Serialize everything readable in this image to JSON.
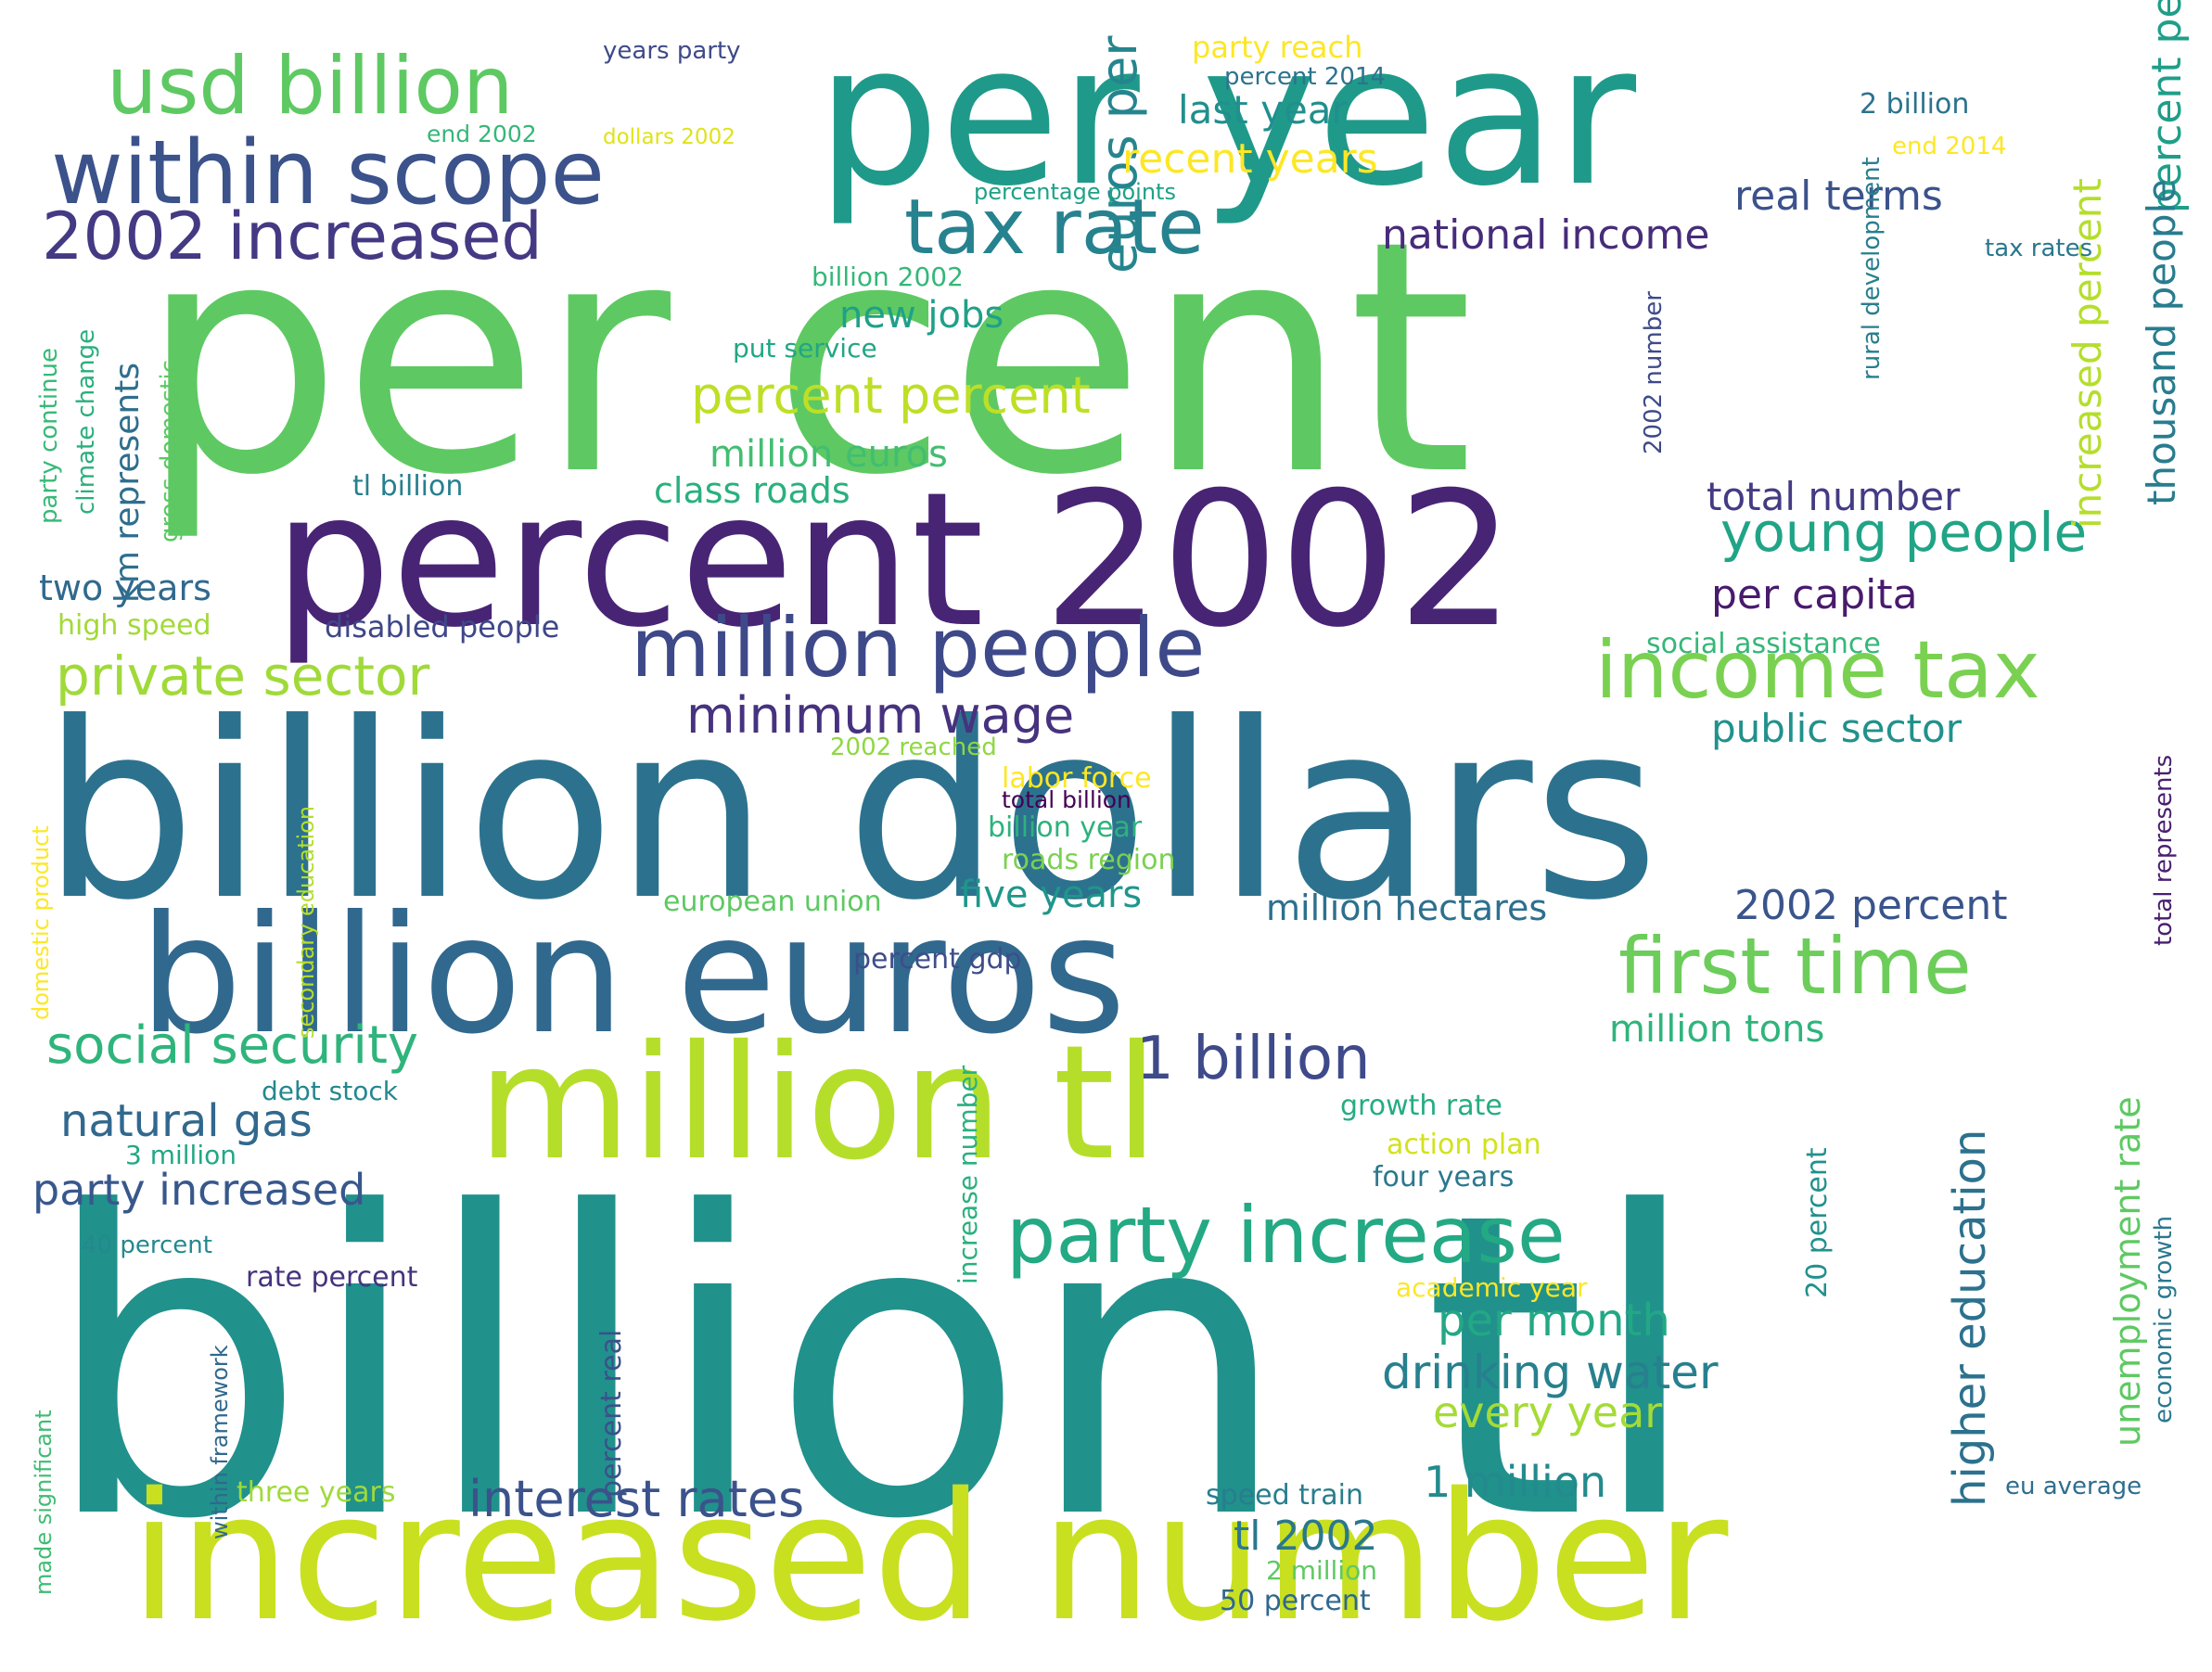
{
  "words": [
    {
      "text": "billion tl",
      "color": "#21918c"
    },
    {
      "text": "per cent",
      "color": "#5ec962"
    },
    {
      "text": "billion dollars",
      "color": "#2c728e"
    },
    {
      "text": "per year",
      "color": "#1f9a8a"
    },
    {
      "text": "percent 2002",
      "color": "#482475"
    },
    {
      "text": "increased number",
      "color": "#c8e020"
    },
    {
      "text": "billion euros",
      "color": "#31688e"
    },
    {
      "text": "million tl",
      "color": "#b5de2b"
    },
    {
      "text": "within scope",
      "color": "#3b528b"
    },
    {
      "text": "usd billion",
      "color": "#5ec962"
    },
    {
      "text": "2002 increased",
      "color": "#443983"
    },
    {
      "text": "tax rate",
      "color": "#26828e"
    },
    {
      "text": "million people",
      "color": "#3e4989"
    },
    {
      "text": "income tax",
      "color": "#7ad151"
    },
    {
      "text": "first time",
      "color": "#6ccd5a"
    },
    {
      "text": "party increase",
      "color": "#23a983"
    },
    {
      "text": "private sector",
      "color": "#a0da39"
    },
    {
      "text": "young people",
      "color": "#20a486"
    },
    {
      "text": "social security",
      "color": "#2fb47c"
    },
    {
      "text": "1 billion",
      "color": "#3e4a89"
    },
    {
      "text": "minimum wage",
      "color": "#46327e"
    },
    {
      "text": "percent percent",
      "color": "#bddf26"
    },
    {
      "text": "interest rates",
      "color": "#3b528b"
    },
    {
      "text": "drinking water",
      "color": "#27808e"
    },
    {
      "text": "euros per",
      "color": "#25858e"
    },
    {
      "text": "natural gas",
      "color": "#31688e"
    },
    {
      "text": "party increased",
      "color": "#38588c"
    },
    {
      "text": "per month",
      "color": "#22a884"
    },
    {
      "text": "every year",
      "color": "#a5db36"
    },
    {
      "text": "1 million",
      "color": "#238a8d"
    },
    {
      "text": "tl 2002",
      "color": "#2a788e"
    },
    {
      "text": "higher education",
      "color": "#2c718e"
    },
    {
      "text": "unemployment rate",
      "color": "#5ec962"
    },
    {
      "text": "recent years",
      "color": "#fde725"
    },
    {
      "text": "last year",
      "color": "#218f8d"
    },
    {
      "text": "national income",
      "color": "#472c7a"
    },
    {
      "text": "real terms",
      "color": "#3b528b"
    },
    {
      "text": "total number",
      "color": "#443b84"
    },
    {
      "text": "per capita",
      "color": "#481b6d"
    },
    {
      "text": "public sector",
      "color": "#21918c"
    },
    {
      "text": "million euros",
      "color": "#42be71"
    },
    {
      "text": "new jobs",
      "color": "#1fa088"
    },
    {
      "text": "class roads",
      "color": "#2ab07f"
    },
    {
      "text": "five years",
      "color": "#1f968b"
    },
    {
      "text": "million hectares",
      "color": "#2d708e"
    },
    {
      "text": "2002 percent",
      "color": "#3a548c"
    },
    {
      "text": "million tons",
      "color": "#2fb47c"
    },
    {
      "text": "two years",
      "color": "#30698e"
    },
    {
      "text": "km represents",
      "color": "#2e6e8e"
    },
    {
      "text": "percent people",
      "color": "#1f9e89"
    },
    {
      "text": "increased percent",
      "color": "#b5de2b"
    },
    {
      "text": "thousand people",
      "color": "#287c8e"
    },
    {
      "text": "percent gdp",
      "color": "#3d4e8a"
    },
    {
      "text": "european union",
      "color": "#5ec962"
    },
    {
      "text": "roads region",
      "color": "#7ad151"
    },
    {
      "text": "billion year",
      "color": "#2db27d"
    },
    {
      "text": "labor force",
      "color": "#fde725"
    },
    {
      "text": "total billion",
      "color": "#440154"
    },
    {
      "text": "2002 reached",
      "color": "#90d743"
    },
    {
      "text": "social assistance",
      "color": "#35b779"
    },
    {
      "text": "disabled people",
      "color": "#3f4788"
    },
    {
      "text": "high speed",
      "color": "#a2da37"
    },
    {
      "text": "tl billion",
      "color": "#277f8e"
    },
    {
      "text": "debt stock",
      "color": "#24878e"
    },
    {
      "text": "3 million",
      "color": "#22a785"
    },
    {
      "text": "40 percent",
      "color": "#23898e"
    },
    {
      "text": "rate percent",
      "color": "#46337f"
    },
    {
      "text": "growth rate",
      "color": "#25ac82"
    },
    {
      "text": "action plan",
      "color": "#d2e21b"
    },
    {
      "text": "four years",
      "color": "#2a788e"
    },
    {
      "text": "academic year",
      "color": "#fde725"
    },
    {
      "text": "speed train",
      "color": "#277e8e"
    },
    {
      "text": "2 million",
      "color": "#5ec962"
    },
    {
      "text": "50 percent",
      "color": "#30678d"
    },
    {
      "text": "three years",
      "color": "#a0da39"
    },
    {
      "text": "eu average",
      "color": "#2e6d8e"
    },
    {
      "text": "billion 2002",
      "color": "#35b779"
    },
    {
      "text": "put service",
      "color": "#21a685"
    },
    {
      "text": "percentage points",
      "color": "#1fa187"
    },
    {
      "text": "end 2002",
      "color": "#35b779"
    },
    {
      "text": "dollars 2002",
      "color": "#dfe318"
    },
    {
      "text": "years party",
      "color": "#3e4a89"
    },
    {
      "text": "party reach",
      "color": "#fde725"
    },
    {
      "text": "percent 2014",
      "color": "#2c738e"
    },
    {
      "text": "2 billion",
      "color": "#2c728e"
    },
    {
      "text": "end 2014",
      "color": "#fde725"
    },
    {
      "text": "tax rates",
      "color": "#2a778e"
    },
    {
      "text": "rural development",
      "color": "#277f8e"
    },
    {
      "text": "2002 number",
      "color": "#3e4a89"
    },
    {
      "text": "total represents",
      "color": "#481f70"
    },
    {
      "text": "percent real",
      "color": "#3b518b"
    },
    {
      "text": "increase number",
      "color": "#2ab07f"
    },
    {
      "text": "20 percent",
      "color": "#21918c"
    },
    {
      "text": "economic growth",
      "color": "#2a788e"
    },
    {
      "text": "party continue",
      "color": "#38b977"
    },
    {
      "text": "climate change",
      "color": "#29af7f"
    },
    {
      "text": "gross domestic",
      "color": "#5cc863"
    },
    {
      "text": "domestic product",
      "color": "#fde725"
    },
    {
      "text": "secondary education",
      "color": "#b5de2b"
    },
    {
      "text": "within framework",
      "color": "#30698e"
    },
    {
      "text": "made significant",
      "color": "#3fbc73"
    }
  ]
}
